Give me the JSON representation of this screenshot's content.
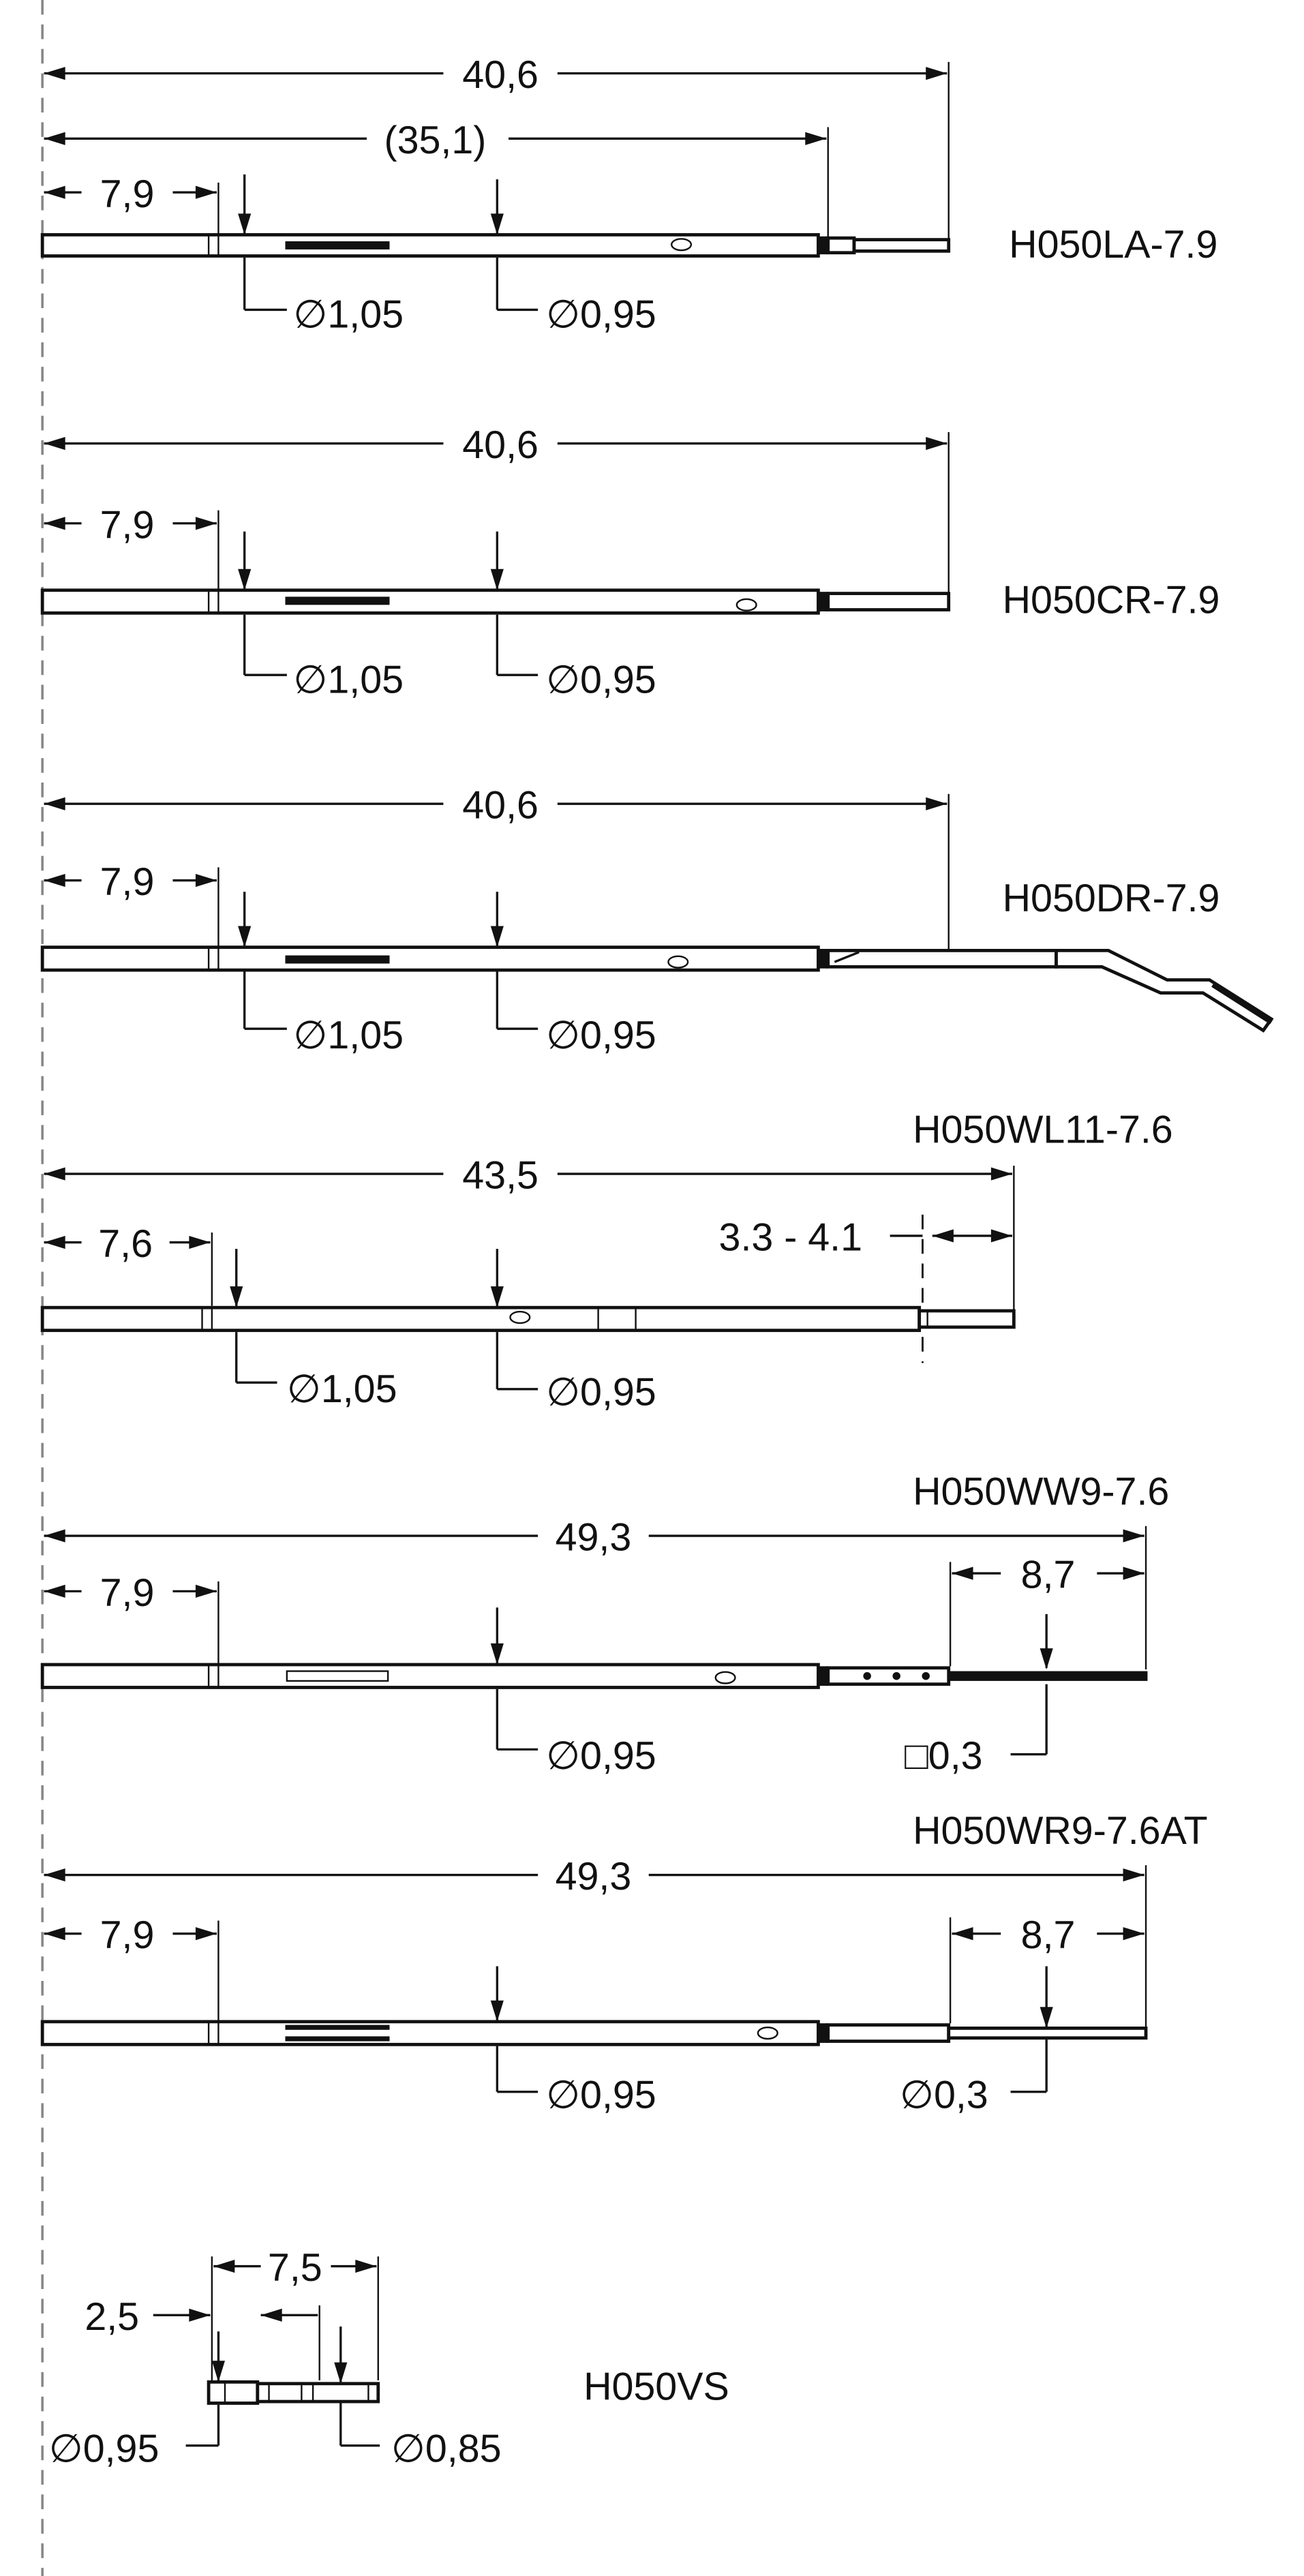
{
  "parts": [
    {
      "part_number": "H050LA-7.9",
      "dims": {
        "overall": "40,6",
        "reference": "(35,1)",
        "offset": "7,9",
        "dia_1": "∅1,05",
        "dia_2": "∅0,95"
      }
    },
    {
      "part_number": "H050CR-7.9",
      "dims": {
        "overall": "40,6",
        "offset": "7,9",
        "dia_1": "∅1,05",
        "dia_2": "∅0,95"
      }
    },
    {
      "part_number": "H050DR-7.9",
      "dims": {
        "overall": "40,6",
        "offset": "7,9",
        "dia_1": "∅1,05",
        "dia_2": "∅0,95"
      }
    },
    {
      "part_number": "H050WL11-7.6",
      "dims": {
        "overall": "43,5",
        "range": "3.3 - 4.1",
        "offset": "7,6",
        "dia_1": "∅1,05",
        "dia_2": "∅0,95"
      }
    },
    {
      "part_number": "H050WW9-7.6",
      "dims": {
        "overall": "49,3",
        "offset": "7,9",
        "tail": "8,7",
        "dia_2": "∅0,95",
        "square": "□0,3"
      }
    },
    {
      "part_number": "H050WR9-7.6AT",
      "dims": {
        "overall": "49,3",
        "offset": "7,9",
        "tail": "8,7",
        "dia_2": "∅0,95",
        "tail_dia": "∅0,3"
      }
    },
    {
      "part_number": "H050VS",
      "dims": {
        "length": "7,5",
        "offset": "2,5",
        "dia_1": "∅0,95",
        "dia_2": "∅0,85"
      }
    }
  ]
}
